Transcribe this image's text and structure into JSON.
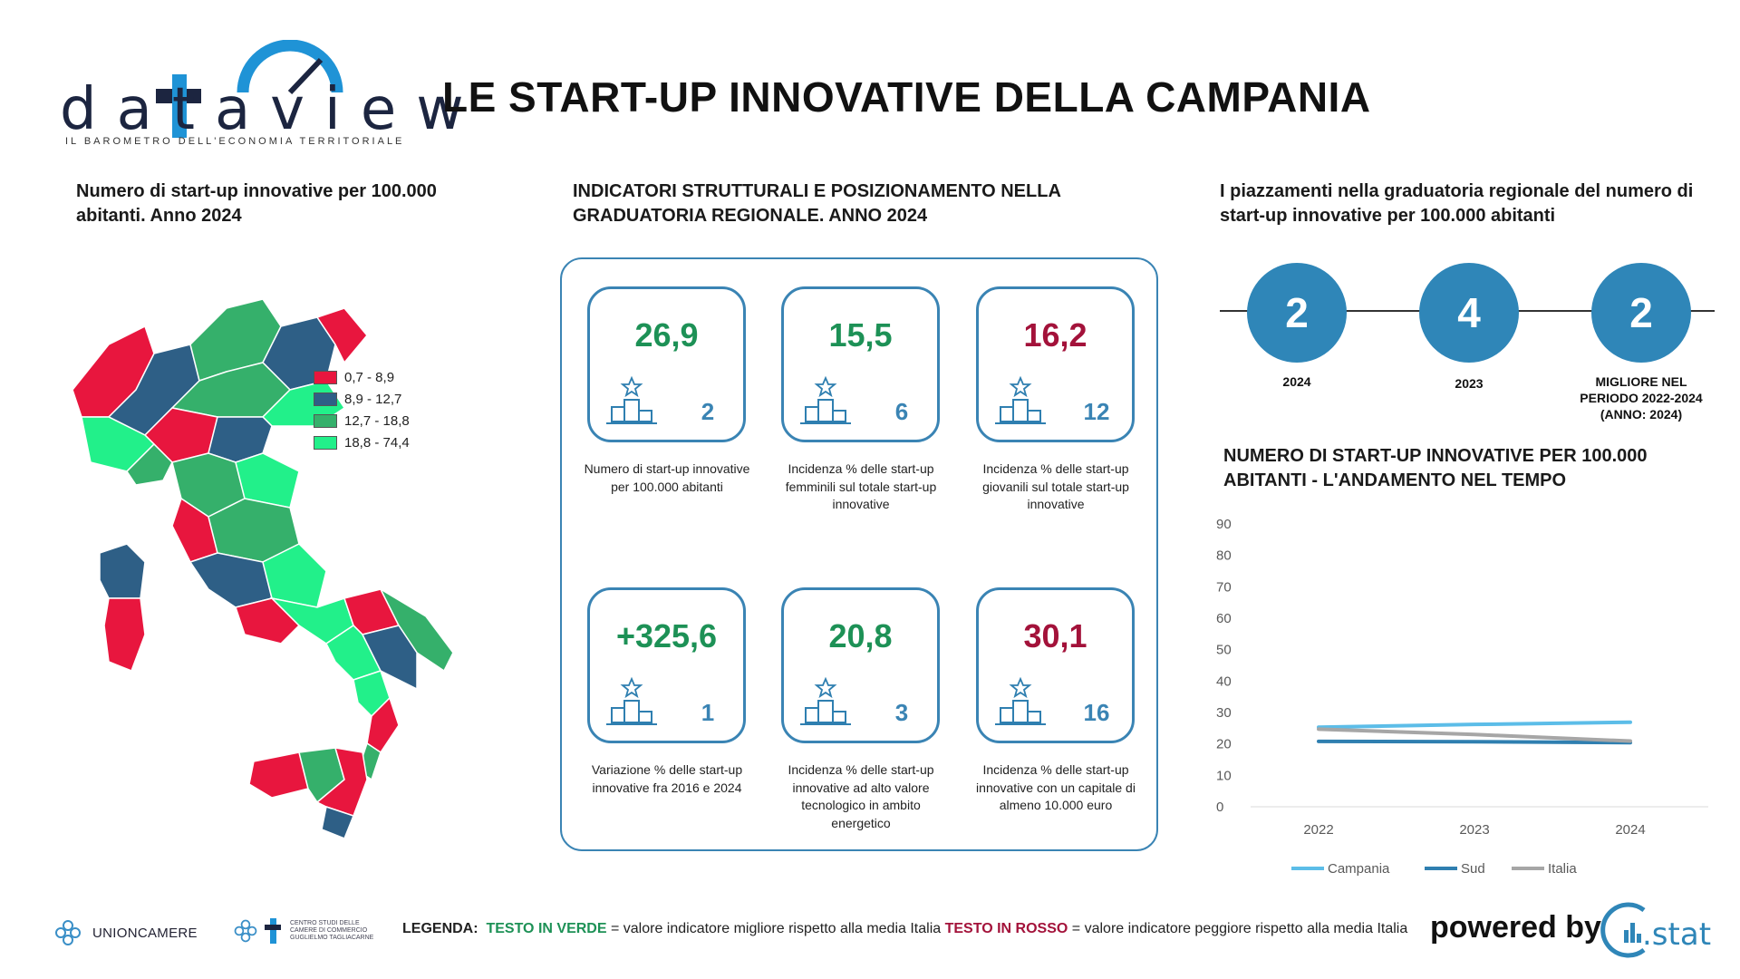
{
  "header": {
    "brand_name": "dataview",
    "brand_tagline": "IL BAROMETRO DELL'ECONOMIA TERRITORIALE",
    "title": "LE START-UP INNOVATIVE DELLA CAMPANIA"
  },
  "map_section": {
    "title": "Numero di start-up innovative per 100.000 abitanti. Anno 2024",
    "legend": [
      {
        "label": "0,7 - 8,9",
        "color": "#e8163e"
      },
      {
        "label": "8,9 - 12,7",
        "color": "#2e5f86"
      },
      {
        "label": "12,7 - 18,8",
        "color": "#35b06b"
      },
      {
        "label": "18,8 - 74,4",
        "color": "#22f08a"
      }
    ]
  },
  "indicators_section": {
    "title": "INDICATORI STRUTTURALI E POSIZIONAMENTO NELLA GRADUATORIA REGIONALE. ANNO 2024",
    "cards": [
      {
        "value": "26,9",
        "rank": "2",
        "status": "green",
        "description": "Numero di start-up innovative per 100.000 abitanti"
      },
      {
        "value": "15,5",
        "rank": "6",
        "status": "green",
        "description": "Incidenza % delle start-up femminili sul totale start-up innovative"
      },
      {
        "value": "16,2",
        "rank": "12",
        "status": "red",
        "description": "Incidenza % delle start-up giovanili sul totale start-up innovative"
      },
      {
        "value": "+325,6",
        "rank": "1",
        "status": "green",
        "description": "Variazione % delle start-up innovative fra 2016 e 2024"
      },
      {
        "value": "20,8",
        "rank": "3",
        "status": "green",
        "description": "Incidenza % delle start-up innovative ad alto valore tecnologico in ambito energetico"
      },
      {
        "value": "30,1",
        "rank": "16",
        "status": "red",
        "description": "Incidenza % delle start-up innovative con un capitale di almeno 10.000 euro"
      }
    ]
  },
  "rankings_section": {
    "title": "I piazzamenti nella graduatoria regionale del numero di start-up innovative per 100.000 abitanti",
    "items": [
      {
        "value": "2",
        "label": "2024"
      },
      {
        "value": "4",
        "label": "2023"
      },
      {
        "value": "2",
        "label": "MIGLIORE NEL PERIODO 2022-2024 (ANNO: 2024)"
      }
    ]
  },
  "trend_section": {
    "title": "NUMERO DI START-UP INNOVATIVE PER 100.000 ABITANTI - L'ANDAMENTO NEL TEMPO"
  },
  "chart_data": {
    "type": "line",
    "title": "NUMERO DI START-UP INNOVATIVE PER 100.000 ABITANTI - L'ANDAMENTO NEL TEMPO",
    "x": [
      "2022",
      "2023",
      "2024"
    ],
    "ylim": [
      0,
      90
    ],
    "yticks": [
      0,
      10,
      20,
      30,
      40,
      50,
      60,
      70,
      80,
      90
    ],
    "grid": false,
    "legend_position": "bottom",
    "series": [
      {
        "name": "Campania",
        "color": "#5cbde8",
        "values": [
          25.3,
          26.2,
          26.9
        ]
      },
      {
        "name": "Sud",
        "color": "#2f7fb0",
        "values": [
          20.8,
          20.7,
          20.4
        ]
      },
      {
        "name": "Italia",
        "color": "#a6a6a6",
        "values": [
          24.7,
          23.0,
          20.9
        ]
      }
    ]
  },
  "footer": {
    "unioncamere": "UNIONCAMERE",
    "tagliacarne": "CENTRO STUDI DELLE CAMERE DI COMMERCIO GUGLIELMO TAGLIACARNE",
    "legenda_label": "LEGENDA:",
    "legenda_green": "TESTO IN VERDE",
    "legenda_green_text": "= valore indicatore migliore rispetto alla media Italia",
    "legenda_red": "TESTO IN ROSSO",
    "legenda_red_text": "= valore indicatore peggiore rispetto alla media Italia",
    "powered_by": "powered by",
    "stat_logo_text": ".stat"
  }
}
